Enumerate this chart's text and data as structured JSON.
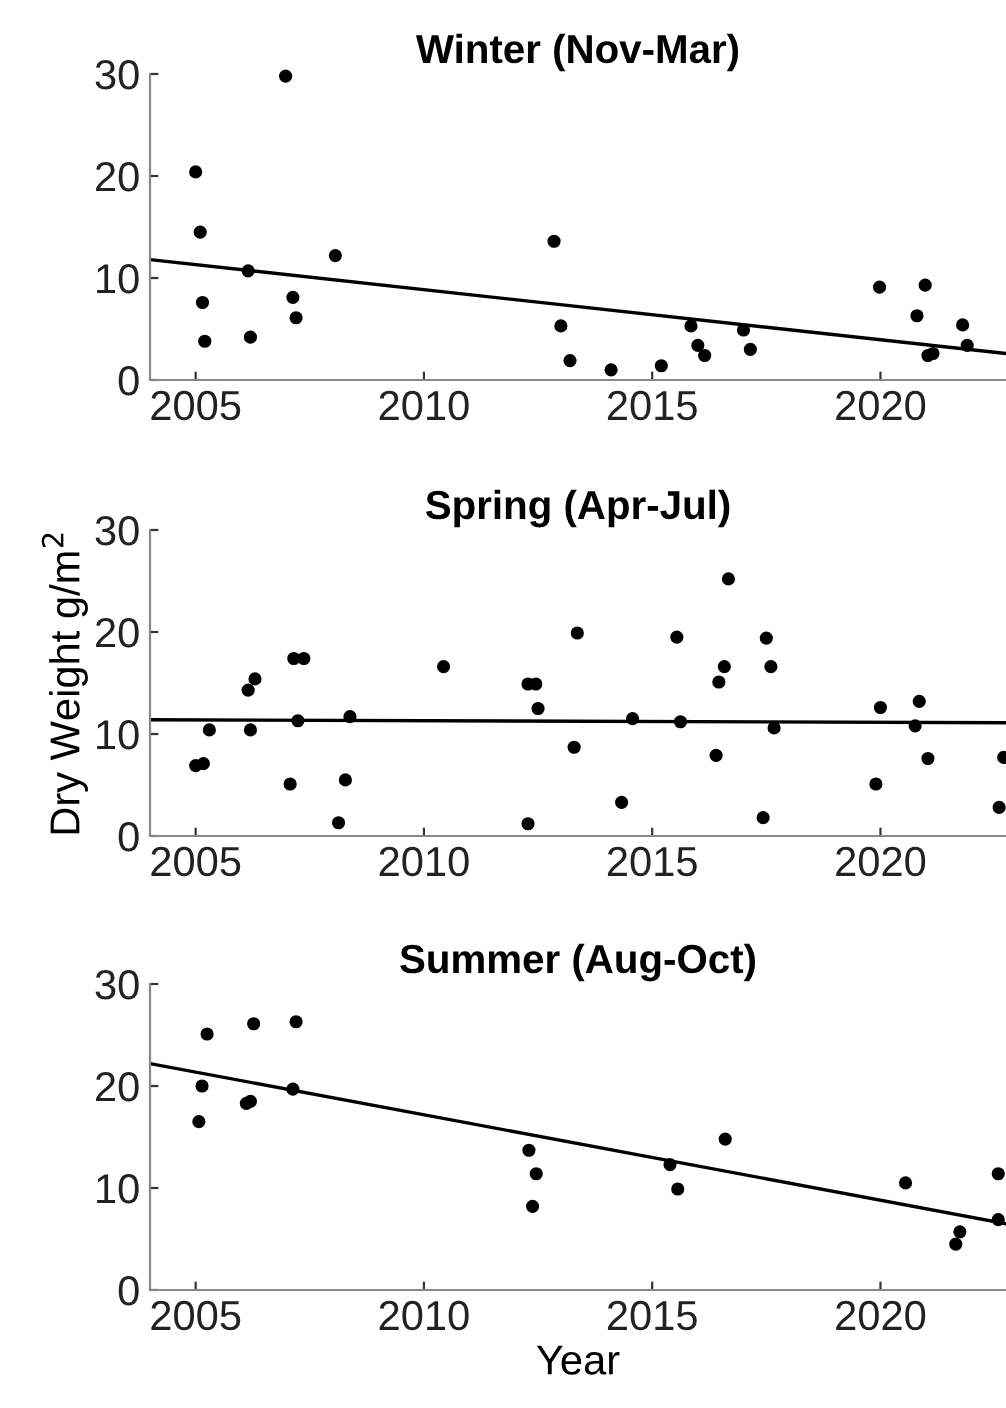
{
  "chart_data": [
    {
      "type": "scatter",
      "title": "Winter (Nov-Mar)",
      "xlim": [
        2004,
        2022.75
      ],
      "ylim": [
        0,
        30
      ],
      "xticks": [
        2005,
        2010,
        2015,
        2020
      ],
      "yticks": [
        0,
        10,
        20,
        30
      ],
      "series": [
        {
          "marker": "circle",
          "color": "#000000",
          "x": [
            2005.0,
            2005.1,
            2005.15,
            2005.2,
            2006.15,
            2006.2,
            2006.97,
            2007.13,
            2007.2,
            2008.06,
            2012.85,
            2013.0,
            2013.2,
            2014.1,
            2015.2,
            2015.85,
            2016.0,
            2016.15,
            2017.0,
            2017.15,
            2019.98,
            2020.8,
            2020.98,
            2021.04,
            2021.15,
            2021.8,
            2021.9
          ],
          "values": [
            20.4,
            14.5,
            7.6,
            3.8,
            10.7,
            4.2,
            29.8,
            8.1,
            6.1,
            12.2,
            13.6,
            5.3,
            1.9,
            1.0,
            1.4,
            5.3,
            3.4,
            2.4,
            4.9,
            3.0,
            9.1,
            6.3,
            9.3,
            2.4,
            2.6,
            5.4,
            3.4
          ]
        },
        {
          "type": "line",
          "color": "#000000",
          "line_style": "solid",
          "x": [
            2004,
            2022.75
          ],
          "values": [
            11.8,
            2.6
          ]
        }
      ]
    },
    {
      "type": "scatter",
      "title": "Spring (Apr-Jul)",
      "ylabel": "Dry Weight g/m$^{2}$",
      "xlim": [
        2004,
        2022.75
      ],
      "ylim": [
        0,
        30
      ],
      "xticks": [
        2005,
        2010,
        2015,
        2020
      ],
      "yticks": [
        0,
        10,
        20,
        30
      ],
      "series": [
        {
          "marker": "circle",
          "color": "#000000",
          "x": [
            2005.0,
            2005.17,
            2005.3,
            2006.15,
            2006.3,
            2006.2,
            2007.07,
            2007.15,
            2007.37,
            2007.24,
            2008.13,
            2008.28,
            2008.38,
            2010.43,
            2012.28,
            2012.45,
            2012.28,
            2012.5,
            2013.29,
            2013.36,
            2014.33,
            2014.57,
            2015.54,
            2015.62,
            2016.4,
            2016.46,
            2016.58,
            2016.67,
            2017.43,
            2017.5,
            2017.6,
            2017.67,
            2019.9,
            2020.0,
            2020.76,
            2020.85,
            2021.04,
            2022.6,
            2022.7
          ],
          "values": [
            6.9,
            7.1,
            10.4,
            14.3,
            15.4,
            10.4,
            5.1,
            17.4,
            17.4,
            11.3,
            1.3,
            5.5,
            11.7,
            16.6,
            14.9,
            14.9,
            1.2,
            12.5,
            8.7,
            19.9,
            3.3,
            11.5,
            19.5,
            11.2,
            7.9,
            15.1,
            16.6,
            25.2,
            1.8,
            19.4,
            16.6,
            10.6,
            5.1,
            12.6,
            10.8,
            13.2,
            7.6,
            2.8,
            7.7
          ]
        },
        {
          "type": "line",
          "color": "#000000",
          "line_style": "solid",
          "x": [
            2004,
            2022.75
          ],
          "values": [
            11.4,
            11.1
          ]
        }
      ]
    },
    {
      "type": "scatter",
      "title": "Summer (Aug-Oct)",
      "xlabel": "Year",
      "xlim": [
        2004,
        2022.75
      ],
      "ylim": [
        0,
        30
      ],
      "xticks": [
        2005,
        2010,
        2015,
        2020
      ],
      "yticks": [
        0,
        10,
        20,
        30
      ],
      "series": [
        {
          "marker": "circle",
          "color": "#000000",
          "x": [
            2005.07,
            2005.14,
            2005.25,
            2006.11,
            2006.2,
            2006.27,
            2007.13,
            2007.2,
            2012.3,
            2012.46,
            2012.38,
            2015.39,
            2015.56,
            2016.6,
            2020.55,
            2021.65,
            2021.74,
            2022.58,
            2022.58
          ],
          "values": [
            16.5,
            20.0,
            25.1,
            18.3,
            18.5,
            26.1,
            19.7,
            26.3,
            13.7,
            11.4,
            8.2,
            12.3,
            9.9,
            14.8,
            10.5,
            4.5,
            5.7,
            11.4,
            6.9
          ]
        },
        {
          "type": "line",
          "color": "#000000",
          "line_style": "solid",
          "x": [
            2004,
            2022.75
          ],
          "values": [
            22.2,
            6.5
          ]
        }
      ]
    }
  ]
}
